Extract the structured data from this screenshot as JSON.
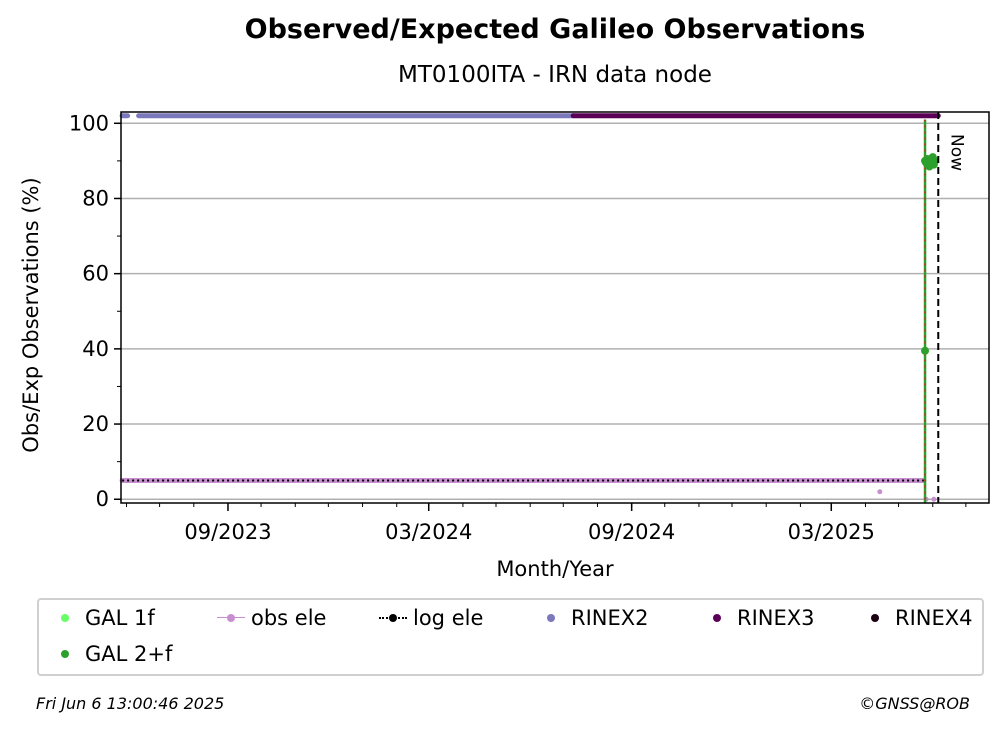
{
  "chart_data": {
    "type": "scatter",
    "title": "Observed/Expected Galileo Observations",
    "subtitle": "MT0100ITA - IRN data node",
    "xlabel": "Month/Year",
    "ylabel": "Obs/Exp Observations (%)",
    "xlim": [
      "2023-05-27",
      "2025-07-22"
    ],
    "ylim": [
      -1,
      103
    ],
    "x_ticks": [
      {
        "date": "2023-09-01",
        "label": "09/2023"
      },
      {
        "date": "2024-03-01",
        "label": "03/2024"
      },
      {
        "date": "2024-09-01",
        "label": "09/2024"
      },
      {
        "date": "2025-03-01",
        "label": "03/2025"
      }
    ],
    "y_ticks": [
      0,
      20,
      40,
      60,
      80,
      100
    ],
    "grid": "horizontal",
    "now_marker": {
      "date": "2025-06-06",
      "label": "Now"
    },
    "series": [
      {
        "name": "GAL 1f",
        "color": "#66ff66",
        "marker": "dot",
        "points": []
      },
      {
        "name": "obs ele",
        "color": "#c88fd0",
        "marker": "dot-line",
        "segments": [
          {
            "from": "2023-05-28",
            "to": "2025-05-24",
            "y": 5
          }
        ],
        "points": [
          {
            "x": "2025-04-14",
            "y": 2
          },
          {
            "x": "2025-05-26",
            "y": 0
          },
          {
            "x": "2025-06-02",
            "y": 0
          }
        ]
      },
      {
        "name": "log ele",
        "color": "#000000",
        "marker": "dot-dotted",
        "segments": [
          {
            "from": "2023-05-28",
            "to": "2025-05-24",
            "y": 5
          }
        ]
      },
      {
        "name": "RINEX2",
        "color": "#7b78bc",
        "marker": "dot",
        "segments": [
          {
            "from": "2023-05-28",
            "to": "2023-06-02",
            "y": 102
          },
          {
            "from": "2023-06-12",
            "to": "2024-07-10",
            "y": 102
          }
        ]
      },
      {
        "name": "RINEX3",
        "color": "#5c0057",
        "marker": "dot",
        "segments": [
          {
            "from": "2024-07-10",
            "to": "2025-06-06",
            "y": 102
          }
        ]
      },
      {
        "name": "RINEX4",
        "color": "#1a0012",
        "marker": "dot",
        "points": []
      },
      {
        "name": "GAL 2+f",
        "color": "#2ca02c",
        "marker": "dot",
        "points": [
          {
            "x": "2025-05-25",
            "y": 39.5
          },
          {
            "x": "2025-05-25",
            "y": 90
          },
          {
            "x": "2025-05-26",
            "y": 89.5
          },
          {
            "x": "2025-05-27",
            "y": 90.5
          },
          {
            "x": "2025-05-28",
            "y": 89
          },
          {
            "x": "2025-05-29",
            "y": 88.5
          },
          {
            "x": "2025-05-30",
            "y": 90
          },
          {
            "x": "2025-05-31",
            "y": 89.5
          },
          {
            "x": "2025-06-01",
            "y": 91
          },
          {
            "x": "2025-06-02",
            "y": 89
          },
          {
            "x": "2025-06-03",
            "y": 90
          }
        ]
      }
    ],
    "legend_position": "bottom"
  },
  "legend": [
    {
      "label": "GAL 1f",
      "color": "#66ff66",
      "style": "dot"
    },
    {
      "label": "obs ele",
      "color": "#c88fd0",
      "style": "dot-line"
    },
    {
      "label": "log ele",
      "color": "#000000",
      "style": "dot-dotted"
    },
    {
      "label": "RINEX2",
      "color": "#7b78bc",
      "style": "dot"
    },
    {
      "label": "RINEX3",
      "color": "#5c0057",
      "style": "dot"
    },
    {
      "label": "RINEX4",
      "color": "#1a0012",
      "style": "dot"
    },
    {
      "label": "GAL 2+f",
      "color": "#2ca02c",
      "style": "dot"
    }
  ],
  "footer": {
    "timestamp": "Fri Jun  6 13:00:46 2025",
    "credit": "©GNSS@ROB"
  }
}
